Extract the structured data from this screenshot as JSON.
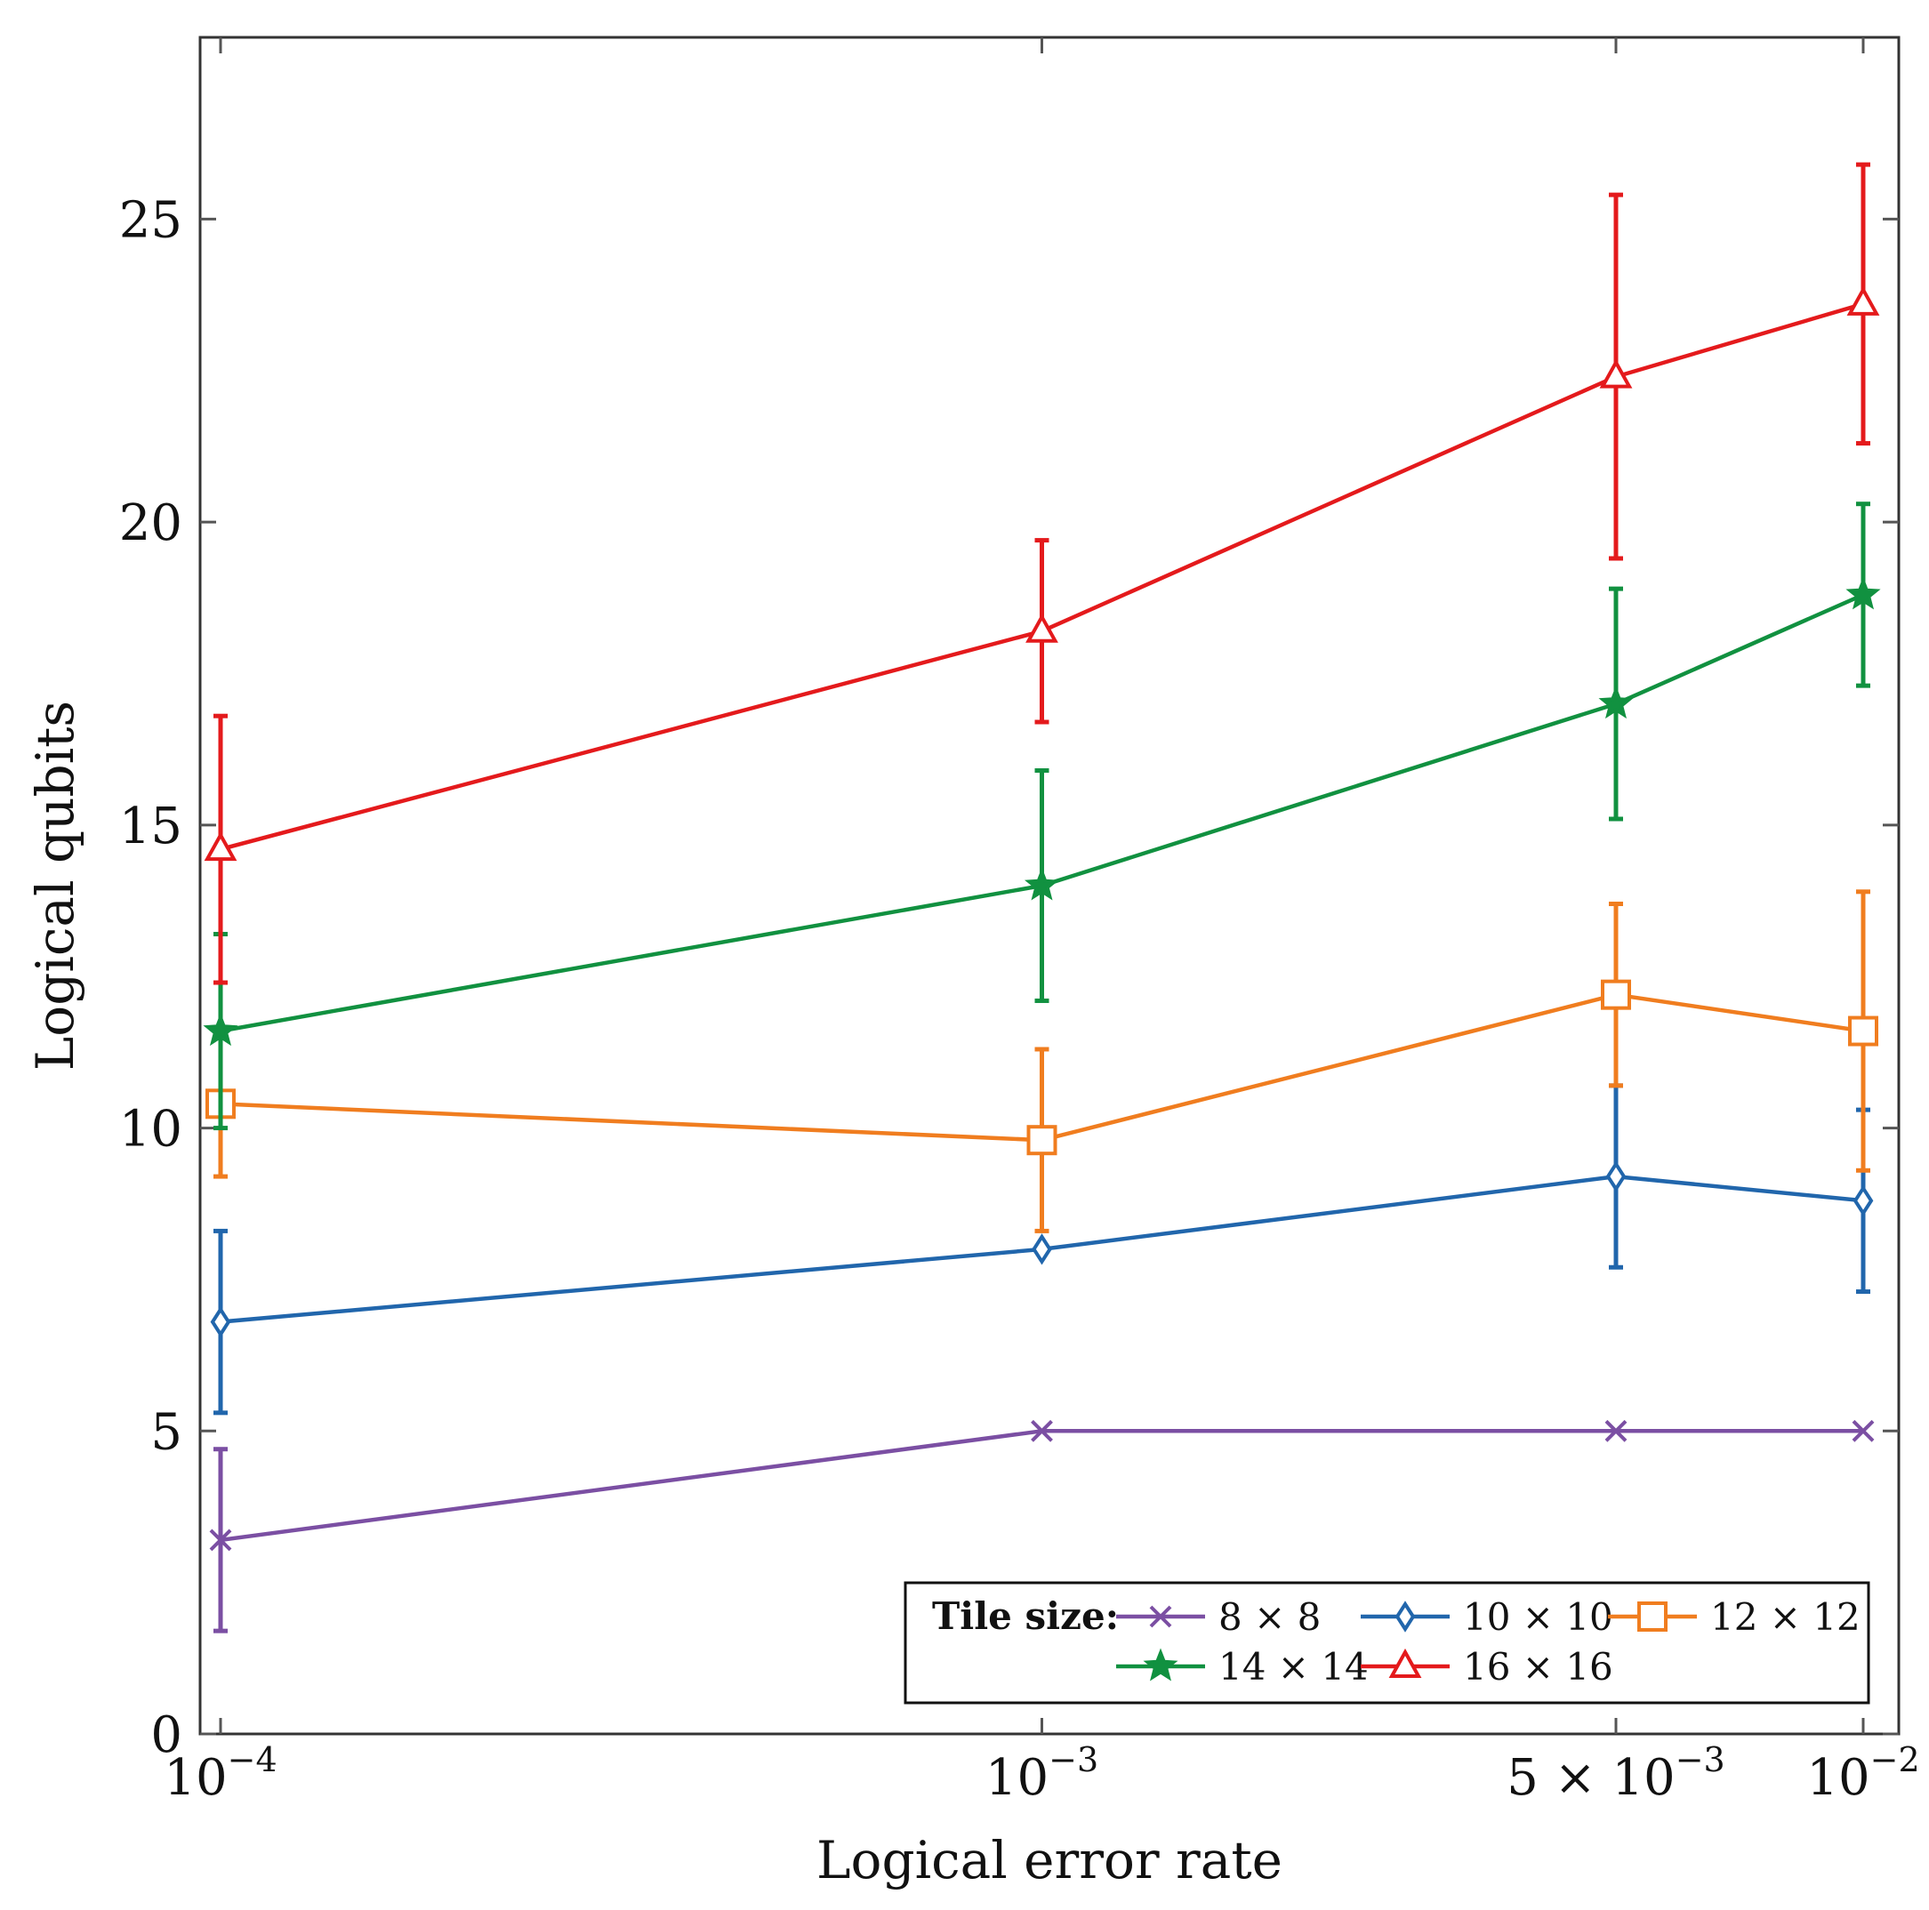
{
  "chart_data": {
    "type": "line",
    "xscale": "log",
    "xlabel": "Logical error rate",
    "ylabel": "Logical qubits",
    "x": [
      0.0001,
      0.001,
      0.005,
      0.01
    ],
    "xlim": [
      0.0001,
      0.01
    ],
    "ylim": [
      0,
      28
    ],
    "xticks": [
      {
        "value": 0.0001,
        "mantissa": "",
        "base": "10",
        "exp": "−4"
      },
      {
        "value": 0.001,
        "mantissa": "",
        "base": "10",
        "exp": "−3"
      },
      {
        "value": 0.005,
        "mantissa": "5 × ",
        "base": "10",
        "exp": "−3"
      },
      {
        "value": 0.01,
        "mantissa": "",
        "base": "10",
        "exp": "−2"
      }
    ],
    "yticks": [
      0,
      5,
      10,
      15,
      20,
      25
    ],
    "legend": {
      "title": "Tile size:",
      "position": "bottom-right"
    },
    "series": [
      {
        "name": "8 × 8",
        "color": "#7b4fa3",
        "marker": "x",
        "values": [
          3.2,
          5.0,
          5.0,
          5.0
        ],
        "errors": [
          1.5,
          0,
          0,
          0
        ]
      },
      {
        "name": "10 × 10",
        "color": "#2166ac",
        "marker": "diamond",
        "values": [
          6.8,
          8.0,
          9.2,
          8.8
        ],
        "errors": [
          1.5,
          0,
          1.5,
          1.5
        ]
      },
      {
        "name": "12 × 12",
        "color": "#f07d1f",
        "marker": "square",
        "values": [
          10.4,
          9.8,
          12.2,
          11.6
        ],
        "errors": [
          1.2,
          1.5,
          1.5,
          2.3
        ]
      },
      {
        "name": "14 × 14",
        "color": "#119140",
        "marker": "star",
        "values": [
          11.6,
          14.0,
          17.0,
          18.8
        ],
        "errors": [
          1.6,
          1.9,
          1.9,
          1.5
        ]
      },
      {
        "name": "16 × 16",
        "color": "#e41a1c",
        "marker": "triangle",
        "values": [
          14.6,
          18.2,
          22.4,
          23.6
        ],
        "errors": [
          2.2,
          1.5,
          3.0,
          2.3
        ]
      }
    ]
  }
}
